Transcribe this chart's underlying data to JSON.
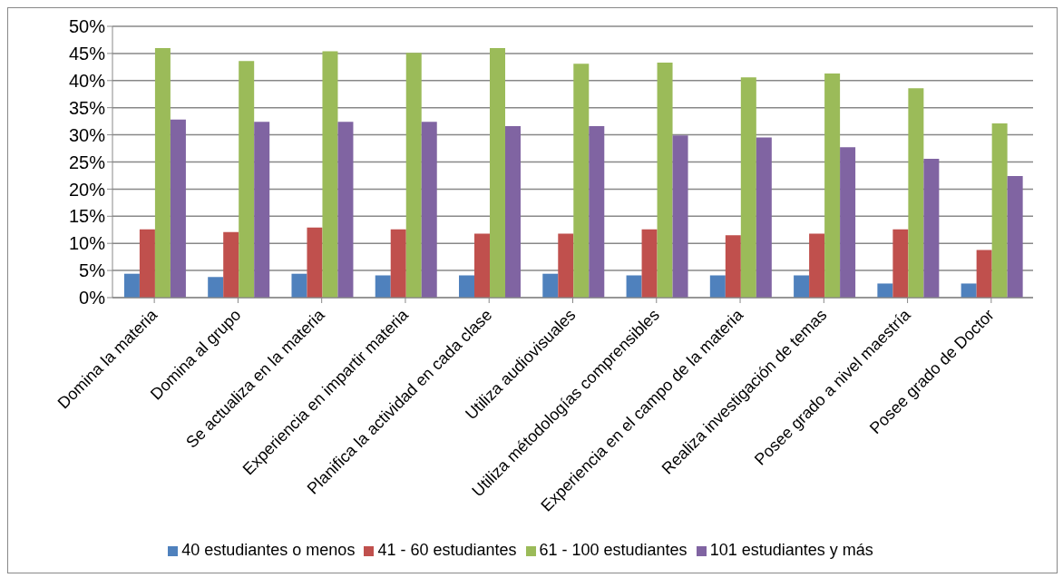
{
  "chart_data": {
    "type": "bar",
    "categories": [
      "Domina la materia",
      "Domina al grupo",
      "Se actualiza en la materia",
      "Experiencia en impartir materia",
      "Planifica la actividad en cada clase",
      "Utiliza audiovisuales",
      "Utiliza métodologías comprensibles",
      "Experiencia en el campo de la materia",
      "Realiza investigación de temas",
      "Posee grado a nivel maestría",
      "Posee grado de Doctor"
    ],
    "series": [
      {
        "name": "40 estudiantes o menos",
        "color": "#4f81bd",
        "values": [
          4.4,
          3.8,
          4.4,
          4.1,
          4.1,
          4.4,
          4.1,
          4.1,
          4.1,
          2.6,
          2.6
        ]
      },
      {
        "name": "41 - 60 estudiantes",
        "color": "#c0504d",
        "values": [
          12.6,
          12.1,
          12.9,
          12.6,
          11.8,
          11.8,
          12.6,
          11.5,
          11.8,
          12.6,
          8.8
        ]
      },
      {
        "name": "61 - 100 estudiantes",
        "color": "#9bbb59",
        "values": [
          46,
          43.6,
          45.4,
          45.1,
          46,
          43.1,
          43.3,
          40.6,
          41.3,
          38.6,
          32.1
        ]
      },
      {
        "name": "101 estudiantes y más",
        "color": "#8064a2",
        "values": [
          32.8,
          32.4,
          32.4,
          32.4,
          31.6,
          31.6,
          29.9,
          29.5,
          27.7,
          25.6,
          22.4
        ]
      }
    ],
    "ylim": [
      0,
      50
    ],
    "yticks": [
      {
        "value": 0,
        "label": "0%"
      },
      {
        "value": 5,
        "label": "5%"
      },
      {
        "value": 10,
        "label": "10%"
      },
      {
        "value": 15,
        "label": "15%"
      },
      {
        "value": 20,
        "label": "20%"
      },
      {
        "value": 25,
        "label": "25%"
      },
      {
        "value": 30,
        "label": "30%"
      },
      {
        "value": 35,
        "label": "35%"
      },
      {
        "value": 40,
        "label": "40%"
      },
      {
        "value": 45,
        "label": "45%"
      },
      {
        "value": 50,
        "label": "50%"
      }
    ],
    "grid": "y",
    "legend": "bottom"
  }
}
